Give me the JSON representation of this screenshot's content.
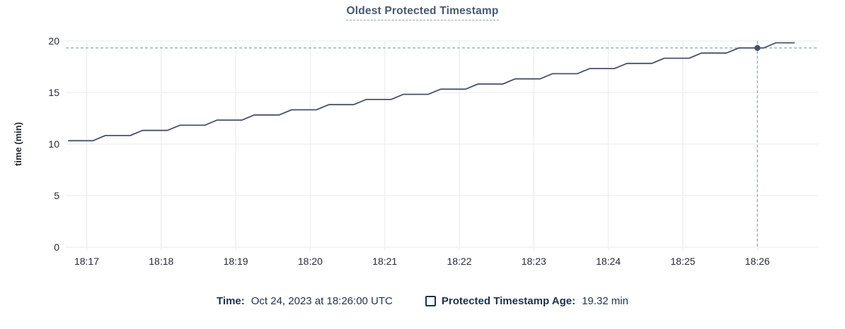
{
  "chart_data": {
    "type": "line",
    "title": "Oldest Protected Timestamp",
    "xlabel": "",
    "ylabel": "time (min)",
    "ylim": [
      0,
      20
    ],
    "y_ticks": [
      0,
      5,
      10,
      15,
      20
    ],
    "x_ticks": [
      "18:17",
      "18:18",
      "18:19",
      "18:20",
      "18:21",
      "18:22",
      "18:23",
      "18:24",
      "18:25",
      "18:26"
    ],
    "grid": true,
    "legend_position": "bottom",
    "series": [
      {
        "name": "Protected Timestamp Age",
        "unit": "min",
        "points": [
          [
            "18:16:45",
            10.32
          ],
          [
            "18:16:55",
            10.32
          ],
          [
            "18:17:05",
            10.32
          ],
          [
            "18:17:15",
            10.82
          ],
          [
            "18:17:25",
            10.82
          ],
          [
            "18:17:35",
            10.82
          ],
          [
            "18:17:45",
            11.32
          ],
          [
            "18:17:55",
            11.32
          ],
          [
            "18:18:05",
            11.32
          ],
          [
            "18:18:15",
            11.82
          ],
          [
            "18:18:25",
            11.82
          ],
          [
            "18:18:35",
            11.82
          ],
          [
            "18:18:45",
            12.32
          ],
          [
            "18:18:55",
            12.32
          ],
          [
            "18:19:05",
            12.32
          ],
          [
            "18:19:15",
            12.82
          ],
          [
            "18:19:25",
            12.82
          ],
          [
            "18:19:35",
            12.82
          ],
          [
            "18:19:45",
            13.32
          ],
          [
            "18:19:55",
            13.32
          ],
          [
            "18:20:05",
            13.32
          ],
          [
            "18:20:15",
            13.82
          ],
          [
            "18:20:25",
            13.82
          ],
          [
            "18:20:35",
            13.82
          ],
          [
            "18:20:45",
            14.32
          ],
          [
            "18:20:55",
            14.32
          ],
          [
            "18:21:05",
            14.32
          ],
          [
            "18:21:15",
            14.82
          ],
          [
            "18:21:25",
            14.82
          ],
          [
            "18:21:35",
            14.82
          ],
          [
            "18:21:45",
            15.32
          ],
          [
            "18:21:55",
            15.32
          ],
          [
            "18:22:05",
            15.32
          ],
          [
            "18:22:15",
            15.82
          ],
          [
            "18:22:25",
            15.82
          ],
          [
            "18:22:35",
            15.82
          ],
          [
            "18:22:45",
            16.32
          ],
          [
            "18:22:55",
            16.32
          ],
          [
            "18:23:05",
            16.32
          ],
          [
            "18:23:15",
            16.82
          ],
          [
            "18:23:25",
            16.82
          ],
          [
            "18:23:35",
            16.82
          ],
          [
            "18:23:45",
            17.32
          ],
          [
            "18:23:55",
            17.32
          ],
          [
            "18:24:05",
            17.32
          ],
          [
            "18:24:15",
            17.82
          ],
          [
            "18:24:25",
            17.82
          ],
          [
            "18:24:35",
            17.82
          ],
          [
            "18:24:45",
            18.32
          ],
          [
            "18:24:55",
            18.32
          ],
          [
            "18:25:05",
            18.32
          ],
          [
            "18:25:15",
            18.82
          ],
          [
            "18:25:25",
            18.82
          ],
          [
            "18:25:35",
            18.82
          ],
          [
            "18:25:45",
            19.32
          ],
          [
            "18:25:55",
            19.32
          ],
          [
            "18:26:05",
            19.32
          ],
          [
            "18:26:15",
            19.82
          ],
          [
            "18:26:25",
            19.82
          ],
          [
            "18:26:30",
            19.82
          ]
        ]
      }
    ],
    "crosshair": {
      "time": "18:26:00",
      "value": 19.32
    }
  },
  "legend": {
    "time_label": "Time:",
    "time_value": "Oct 24, 2023 at 18:26:00 UTC",
    "series_label": "Protected Timestamp Age:",
    "series_value": "19.32 min"
  },
  "colors": {
    "title": "#475872",
    "title_underline": "#8fa1bf",
    "axis_text": "#242a35",
    "grid": "#f0f0f2",
    "line": "#45516b",
    "crosshair": "#a2b5c1",
    "legend_text": "#1c3150"
  }
}
